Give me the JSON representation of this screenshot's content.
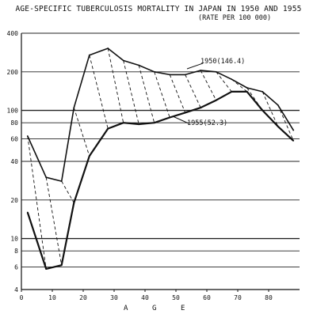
{
  "chart_data": {
    "type": "line",
    "title": "AGE-SPECIFIC TUBERCULOSIS MORTALITY IN JAPAN IN 1950 AND 1955",
    "subtitle": "(RATE PER 100 000)",
    "xlabel": "A G E",
    "ylabel": "",
    "y_scale": "log",
    "xlim": [
      0,
      90
    ],
    "ylim": [
      4,
      400
    ],
    "x_ticks": [
      0,
      10,
      20,
      30,
      40,
      50,
      60,
      70,
      80
    ],
    "y_ticks": [
      4,
      6,
      8,
      10,
      20,
      40,
      60,
      80,
      100,
      200,
      400
    ],
    "grid": "horizontal",
    "series": [
      {
        "name": "1950",
        "x": [
          2,
          8,
          13,
          17,
          22,
          28,
          33,
          38,
          43,
          48,
          53,
          58,
          63,
          68,
          73,
          78,
          83,
          88
        ],
        "values": [
          63,
          30,
          28,
          105,
          270,
          305,
          245,
          225,
          200,
          190,
          190,
          205,
          200,
          175,
          150,
          140,
          110,
          70
        ]
      },
      {
        "name": "1955",
        "x": [
          2,
          8,
          13,
          17,
          22,
          28,
          33,
          38,
          43,
          48,
          53,
          58,
          63,
          68,
          73,
          78,
          83,
          88
        ],
        "values": [
          16,
          5.8,
          6.2,
          19,
          44,
          72,
          80,
          78,
          80,
          88,
          96,
          105,
          120,
          140,
          140,
          100,
          75,
          58
        ]
      }
    ],
    "annotations": [
      "1950(146.4)",
      "1955(52.3)"
    ],
    "x_axis_letters": [
      "A",
      "G",
      "E"
    ]
  }
}
